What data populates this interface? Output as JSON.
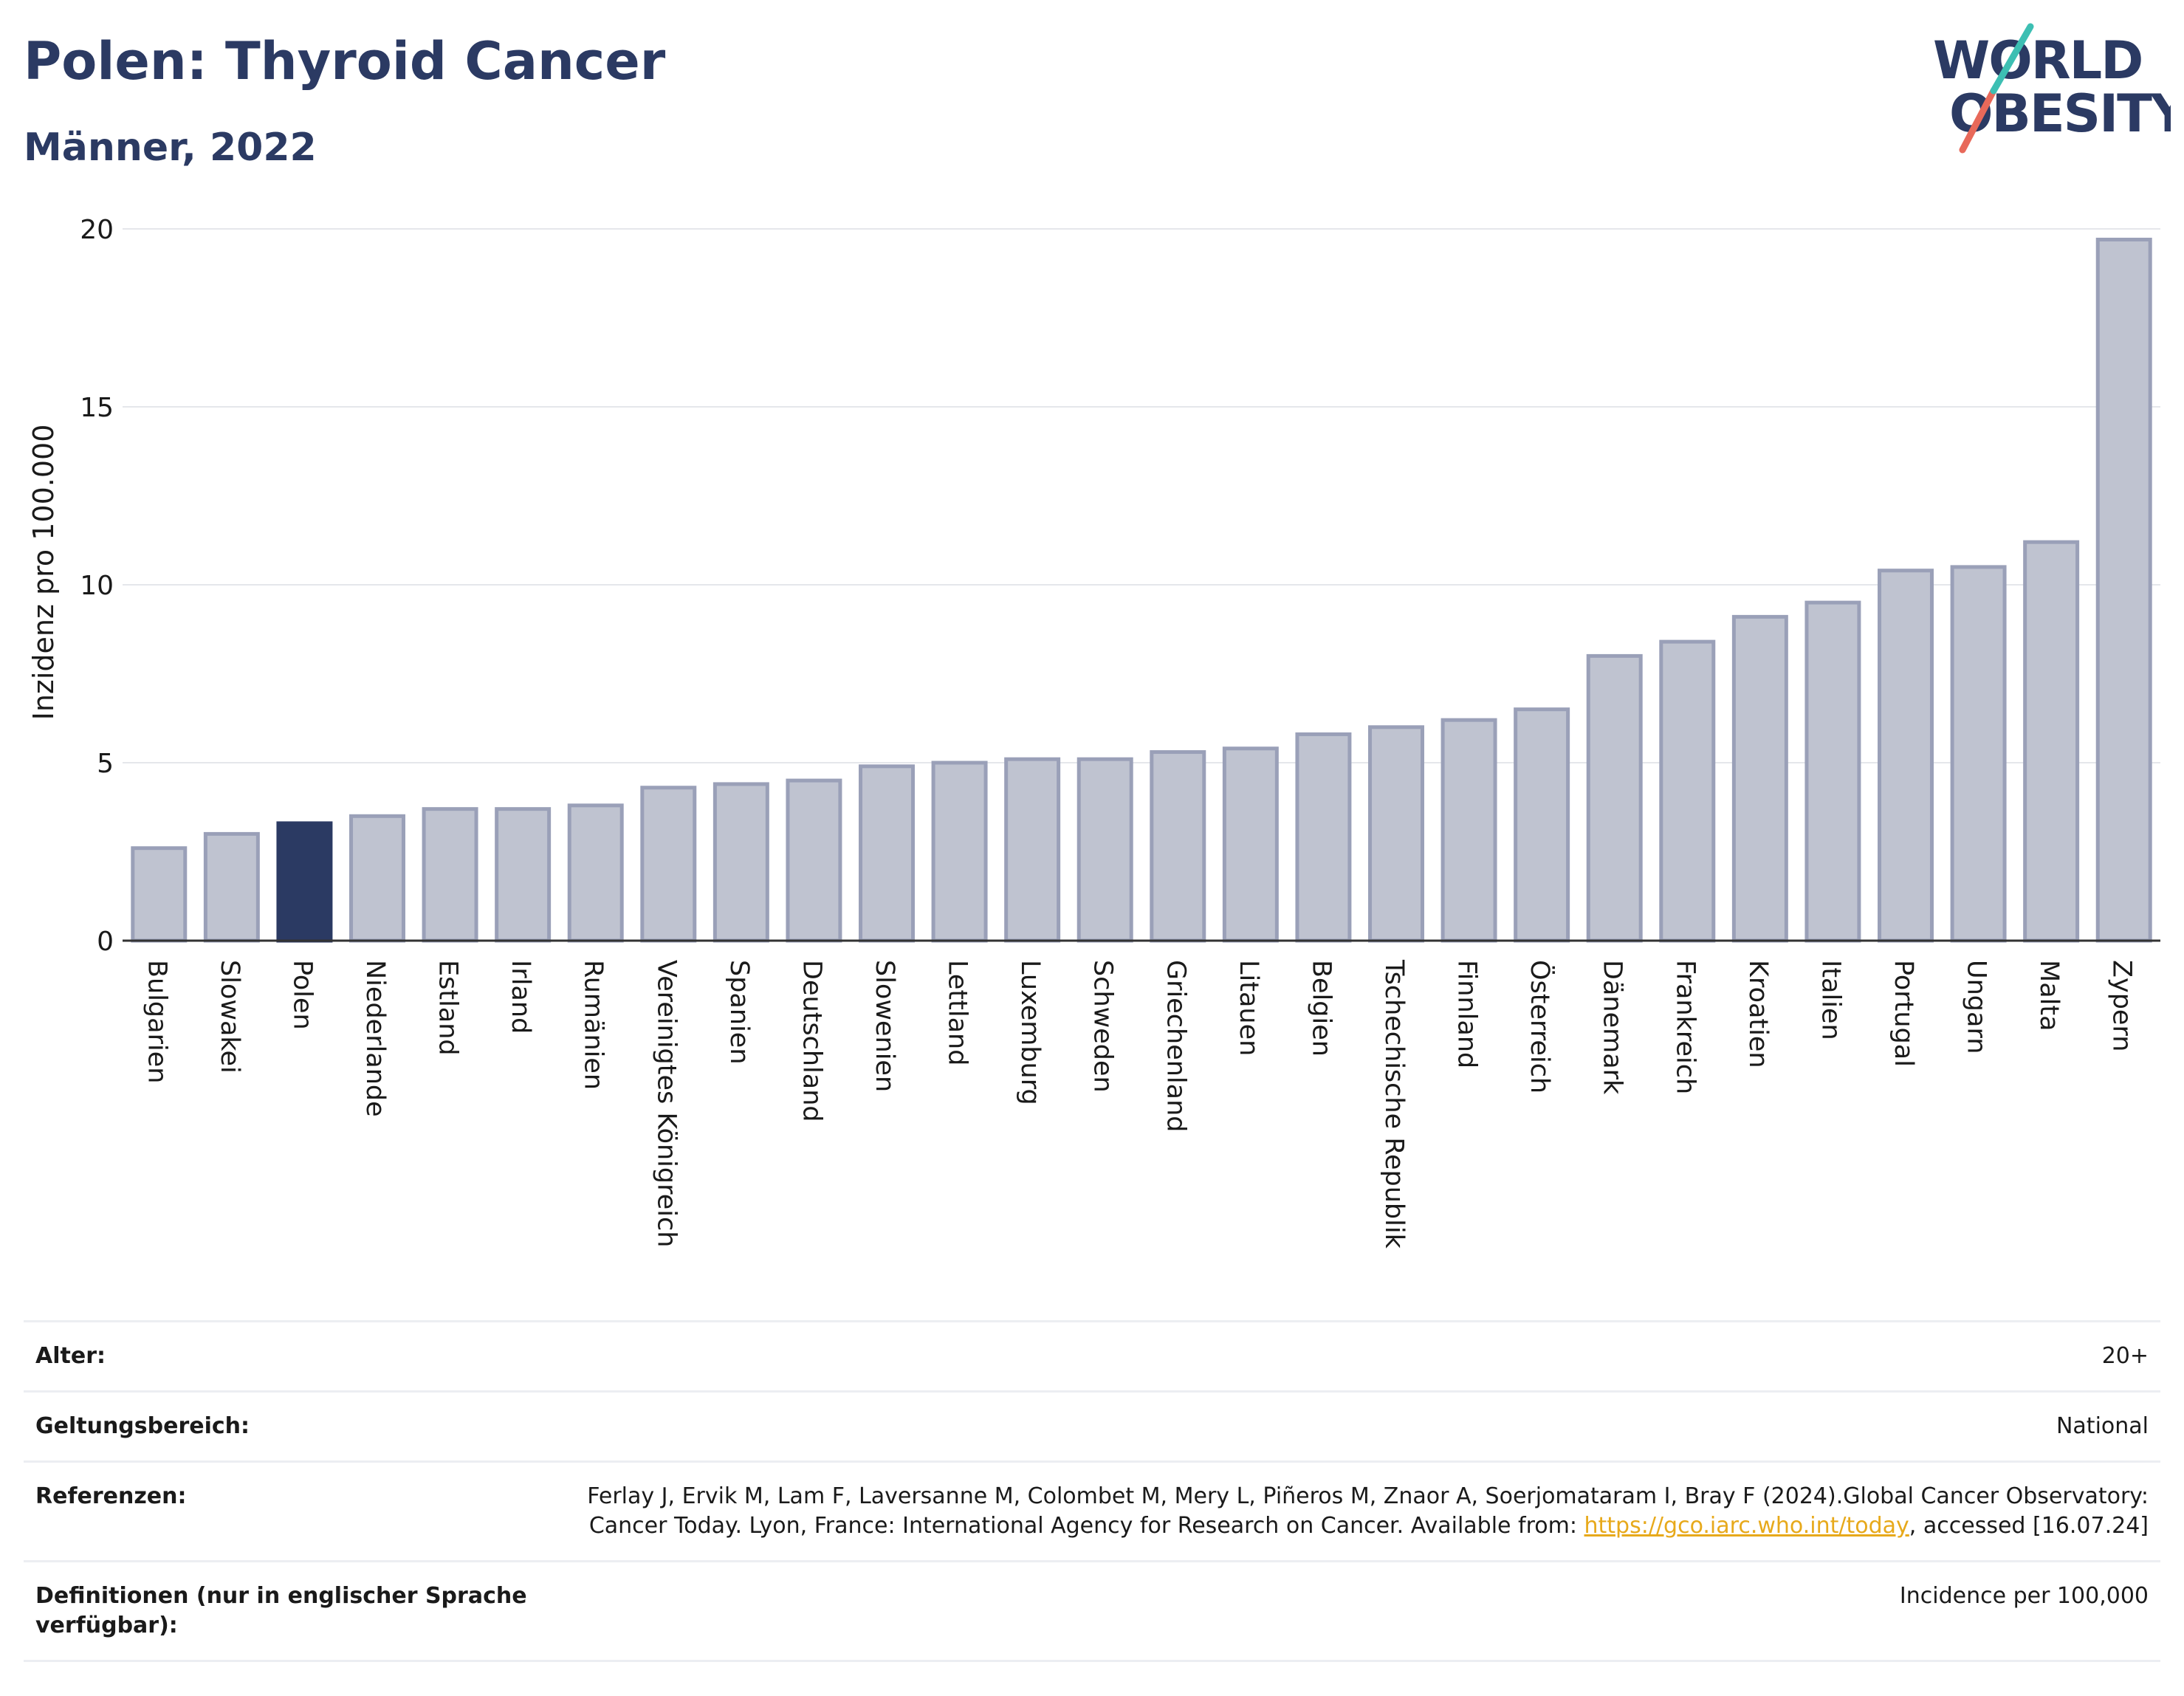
{
  "header": {
    "title": "Polen: Thyroid Cancer",
    "subtitle": "Männer, 2022"
  },
  "logo": {
    "line1": "WORLD",
    "line2": "OBESITY"
  },
  "colors": {
    "bar": "#bfc3d0",
    "bar_border": "#9aa0b8",
    "highlight": "#2b3a63",
    "title": "#2b3a63",
    "logo_teal": "#3dbfb3",
    "logo_red": "#e8695a"
  },
  "chart_data": {
    "type": "bar",
    "ylabel": "Inzidenz pro 100.000",
    "ylim": [
      0,
      20
    ],
    "yticks": [
      0,
      5,
      10,
      15,
      20
    ],
    "grid": true,
    "highlight": "Polen",
    "categories": [
      "Bulgarien",
      "Slowakei",
      "Polen",
      "Niederlande",
      "Estland",
      "Irland",
      "Rumänien",
      "Vereinigtes Königreich",
      "Spanien",
      "Deutschland",
      "Slowenien",
      "Lettland",
      "Luxemburg",
      "Schweden",
      "Griechenland",
      "Litauen",
      "Belgien",
      "Tschechische Republik",
      "Finnland",
      "Österreich",
      "Dänemark",
      "Frankreich",
      "Kroatien",
      "Italien",
      "Portugal",
      "Ungarn",
      "Malta",
      "Zypern"
    ],
    "values": [
      2.6,
      3.0,
      3.3,
      3.5,
      3.7,
      3.7,
      3.8,
      4.3,
      4.4,
      4.5,
      4.9,
      5.0,
      5.1,
      5.1,
      5.3,
      5.4,
      5.8,
      6.0,
      6.2,
      6.5,
      8.0,
      8.4,
      9.1,
      9.5,
      10.4,
      10.5,
      11.2,
      19.7
    ]
  },
  "meta": {
    "age_label": "Alter:",
    "age_value": "20+",
    "scope_label": "Geltungsbereich:",
    "scope_value": "National",
    "ref_label": "Referenzen:",
    "ref_text": "Ferlay J, Ervik M, Lam F, Laversanne M, Colombet M, Mery L, Piñeros M, Znaor A, Soerjomataram I, Bray F (2024).Global Cancer Observatory: Cancer Today. Lyon, France: International Agency for Research on Cancer. Available from: ",
    "ref_link": "https://gco.iarc.who.int/today",
    "ref_tail": ", accessed [16.07.24]",
    "def_label": "Definitionen (nur in englischer Sprache verfügbar):",
    "def_value": "Incidence per 100,000"
  }
}
